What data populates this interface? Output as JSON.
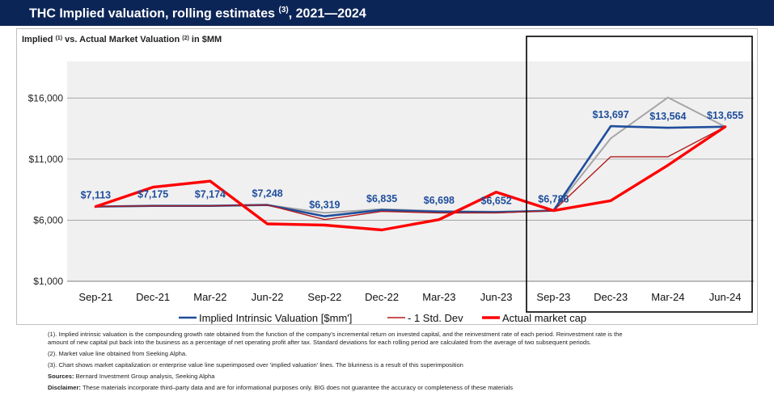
{
  "title": {
    "main": "THC Implied valuation, rolling estimates",
    "sup": "(3)",
    "years": ", 2021—2024"
  },
  "chart_data": {
    "type": "line",
    "title": "Implied",
    "title_sup1": "(1)",
    "title_mid": "vs. Actual Market Valuation",
    "title_sup2": "(2)",
    "title_end": "in $MM",
    "categories": [
      "Sep-21",
      "Dec-21",
      "Mar-22",
      "Jun-22",
      "Sep-22",
      "Dec-22",
      "Mar-23",
      "Jun-23",
      "Sep-23",
      "Dec-23",
      "Mar-24",
      "Jun-24"
    ],
    "ylim": [
      1000,
      19000
    ],
    "yticks": [
      1000,
      6000,
      11000,
      16000
    ],
    "ytick_labels": [
      "$1,000",
      "$6,000",
      "$11,000",
      "$16,000"
    ],
    "grid": true,
    "series": [
      {
        "name": "+1 Std. Dev (grey, unlabeled)",
        "color": "#a6a6a6",
        "width": 2,
        "in_legend": false,
        "values": [
          7113,
          7175,
          7174,
          7248,
          6600,
          6900,
          6750,
          6700,
          6780,
          12700,
          16050,
          13655
        ]
      },
      {
        "name": "Implied Intrinsic Valuation [$mm']",
        "color": "#1f4e9c",
        "width": 2.6,
        "in_legend": true,
        "values": [
          7113,
          7175,
          7174,
          7248,
          6319,
          6835,
          6698,
          6652,
          6786,
          13697,
          13564,
          13655
        ]
      },
      {
        "name": "- 1 Std. Dev",
        "color": "#b01c1c",
        "width": 1.4,
        "in_legend": true,
        "values": [
          7113,
          7175,
          7174,
          7248,
          6050,
          6720,
          6600,
          6600,
          6780,
          11200,
          11200,
          13655
        ]
      },
      {
        "name": "Actual market cap",
        "color": "#ff0000",
        "width": 3.4,
        "in_legend": true,
        "values": [
          7113,
          8700,
          9200,
          5700,
          5600,
          5200,
          6050,
          8300,
          6786,
          7600,
          10500,
          13655
        ]
      }
    ],
    "data_labels": [
      "$7,113",
      "$7,175",
      "$7,174",
      "$7,248",
      "$6,319",
      "$6,835",
      "$6,698",
      "$6,652",
      "$6,786",
      "$13,697",
      "$13,564",
      "$13,655"
    ],
    "highlight_box_range": [
      "Sep-23",
      "Jun-24"
    ],
    "legend_position": "bottom"
  },
  "notes": {
    "n1": "(1). Implied intrinsic valuation is the compounding growth rate obtained from the function of the company's incremental return on invested capital, and the reinvestment rate of each period. Reinvestment rate is the amount of new capital put back into the business as a percentage of net operating profit after tax. Standard deviations for each rolling period are calculated from the average of two subsequent periods.",
    "n2": "(2). Market value line obtained from Seeking Alpha.",
    "n3": "(3). Chart shows market capitalization or enterprise value line superimposed over 'implied valuation' lines. The bluriness is a result of this superimposition",
    "sources_label": "Sources:",
    "sources": "Bernard Investment Group analysis, Seeking Alpha",
    "disclaimer_label": "Disclaimer:",
    "disclaimer": "These materials incorporate third–party data and are for informational purposes only. BIG does not guarantee the accuracy or completeness of these materials"
  },
  "colors": {
    "title_bg": "#0c2557",
    "plot_bg": "#f0f0f0"
  }
}
